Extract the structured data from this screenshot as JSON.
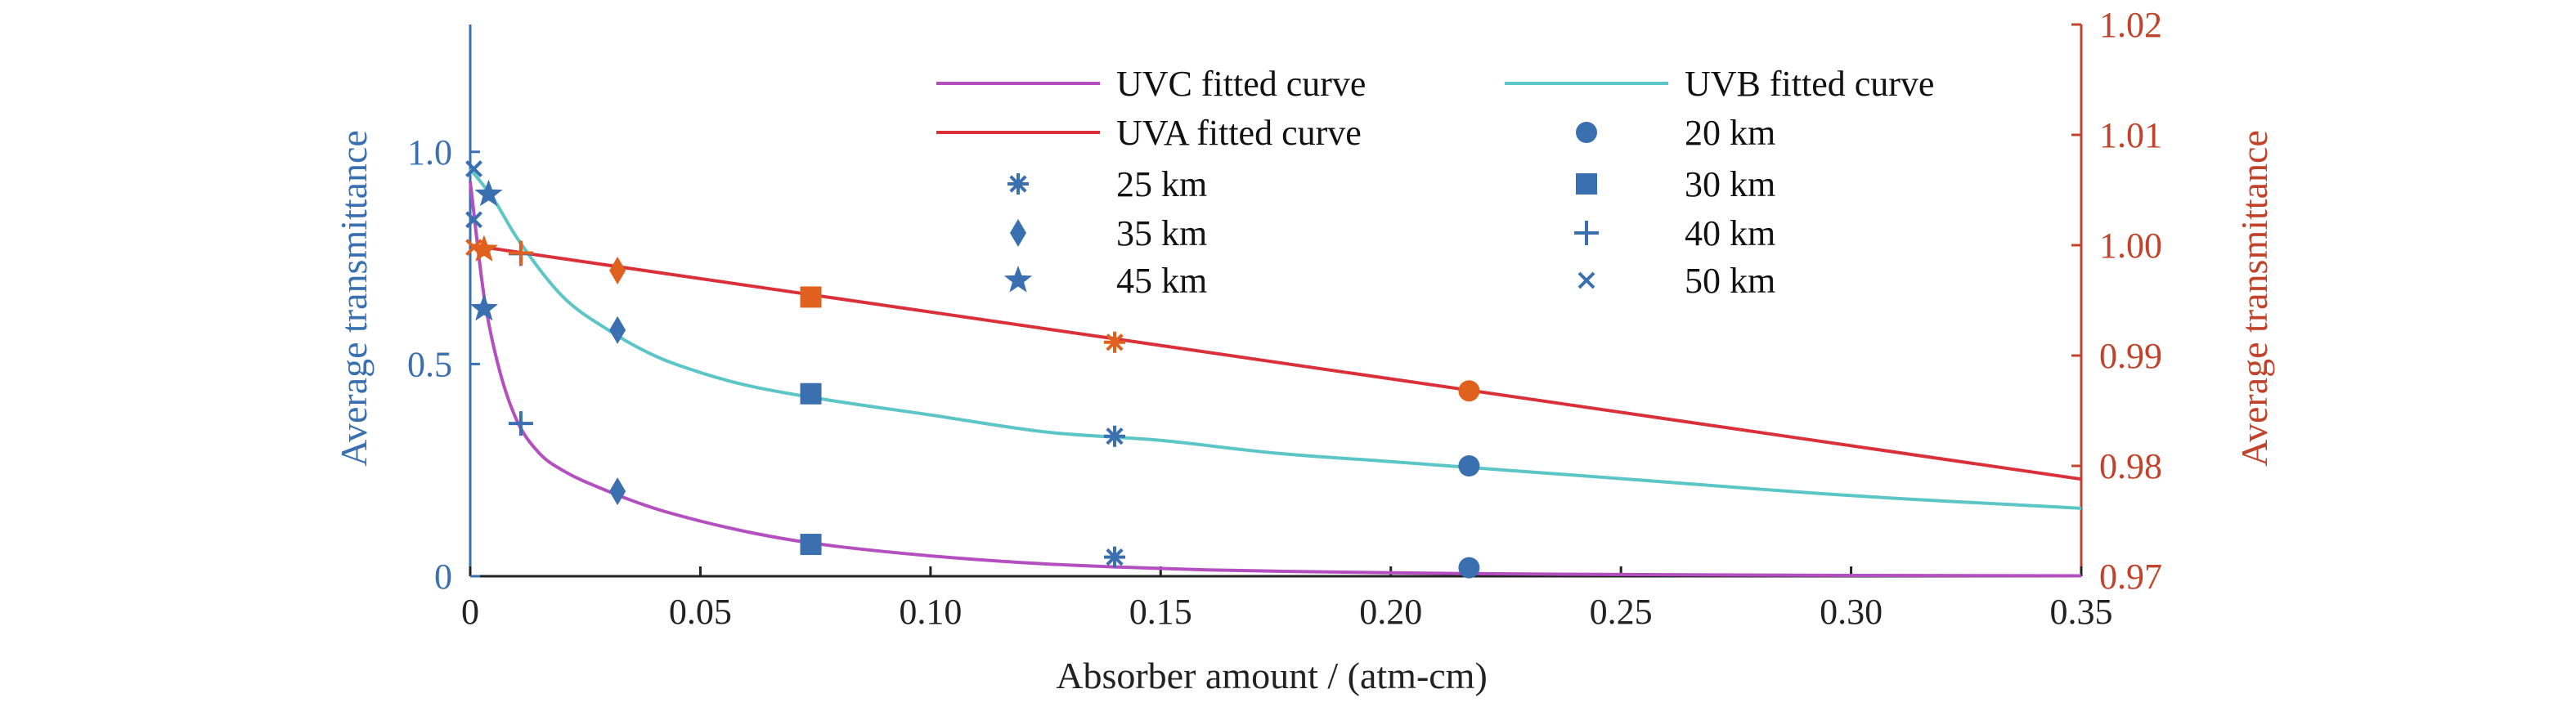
{
  "chart_data": {
    "type": "line",
    "xlabel": "Absorber amount / (atm-cm)",
    "ylabel_left": "Average transmittance",
    "ylabel_right": "Average transmittance",
    "xlim": [
      0,
      0.35
    ],
    "ylim_left": [
      0,
      1.3
    ],
    "ylim_right": [
      0.97,
      1.02
    ],
    "x_ticks": [
      0,
      0.05,
      0.1,
      0.15,
      0.2,
      0.25,
      0.3,
      0.35
    ],
    "x_tick_labels": [
      "0",
      "0.05",
      "0.10",
      "0.15",
      "0.20",
      "0.25",
      "0.30",
      "0.35"
    ],
    "y_left_ticks": [
      0,
      0.5,
      1.0
    ],
    "y_left_tick_labels": [
      "0",
      "0.5",
      "1.0"
    ],
    "y_right_ticks": [
      0.97,
      0.98,
      0.99,
      1.0,
      1.01,
      1.02
    ],
    "y_right_tick_labels": [
      "0.97",
      "0.98",
      "0.99",
      "1.00",
      "1.01",
      "1.02"
    ],
    "grid": false,
    "legend_placement": "top-center",
    "colors": {
      "uvc": "#b44fc0",
      "uvb": "#5cc5c5",
      "uva": "#d9303a",
      "marker_blue": "#3a6fb0",
      "marker_orange": "#e0601e",
      "left_axis": "#3a6fb0",
      "right_axis": "#c0432a"
    },
    "fitted_curves": [
      {
        "name": "UVC fitted curve",
        "axis": "left",
        "x": [
          0,
          0.003,
          0.006,
          0.01,
          0.015,
          0.02,
          0.03,
          0.04,
          0.05,
          0.06,
          0.07,
          0.08,
          0.1,
          0.12,
          0.14,
          0.16,
          0.18,
          0.2,
          0.22,
          0.25,
          0.3,
          0.35
        ],
        "y": [
          0.93,
          0.66,
          0.5,
          0.37,
          0.29,
          0.25,
          0.2,
          0.16,
          0.13,
          0.105,
          0.085,
          0.07,
          0.048,
          0.032,
          0.022,
          0.015,
          0.011,
          0.008,
          0.006,
          0.004,
          0.002,
          0.001
        ]
      },
      {
        "name": "UVB fitted curve",
        "axis": "left",
        "x": [
          0,
          0.005,
          0.01,
          0.02,
          0.03,
          0.04,
          0.05,
          0.06,
          0.075,
          0.1,
          0.125,
          0.15,
          0.175,
          0.2,
          0.225,
          0.25,
          0.3,
          0.35
        ],
        "y": [
          0.96,
          0.89,
          0.8,
          0.66,
          0.58,
          0.52,
          0.48,
          0.45,
          0.42,
          0.38,
          0.34,
          0.32,
          0.29,
          0.27,
          0.25,
          0.23,
          0.19,
          0.16
        ]
      },
      {
        "name": "UVA fitted curve",
        "axis": "right",
        "x": [
          0,
          0.35
        ],
        "y": [
          1.0,
          0.9788
        ]
      }
    ],
    "scatter_series": [
      {
        "name": "20 km",
        "marker": "circle",
        "points": [
          {
            "x": 0.217,
            "y": 0.02,
            "axis": "left",
            "color": "#3a6fb0"
          },
          {
            "x": 0.217,
            "y": 0.26,
            "axis": "left",
            "color": "#3a6fb0"
          },
          {
            "x": 0.217,
            "y": 0.9868,
            "axis": "right",
            "color": "#e0601e"
          }
        ]
      },
      {
        "name": "25 km",
        "marker": "asterisk",
        "points": [
          {
            "x": 0.14,
            "y": 0.045,
            "axis": "left",
            "color": "#3a6fb0"
          },
          {
            "x": 0.14,
            "y": 0.33,
            "axis": "left",
            "color": "#3a6fb0"
          },
          {
            "x": 0.14,
            "y": 0.9912,
            "axis": "right",
            "color": "#e0601e"
          }
        ]
      },
      {
        "name": "30 km",
        "marker": "square",
        "points": [
          {
            "x": 0.074,
            "y": 0.075,
            "axis": "left",
            "color": "#3a6fb0"
          },
          {
            "x": 0.074,
            "y": 0.43,
            "axis": "left",
            "color": "#3a6fb0"
          },
          {
            "x": 0.074,
            "y": 0.9953,
            "axis": "right",
            "color": "#e0601e"
          }
        ]
      },
      {
        "name": "35 km",
        "marker": "diamond",
        "points": [
          {
            "x": 0.032,
            "y": 0.2,
            "axis": "left",
            "color": "#3a6fb0"
          },
          {
            "x": 0.032,
            "y": 0.58,
            "axis": "left",
            "color": "#3a6fb0"
          },
          {
            "x": 0.032,
            "y": 0.9977,
            "axis": "right",
            "color": "#e0601e"
          }
        ]
      },
      {
        "name": "40 km",
        "marker": "plus",
        "points": [
          {
            "x": 0.011,
            "y": 0.36,
            "axis": "left",
            "color": "#3a6fb0"
          },
          {
            "x": 0.011,
            "y": 0.76,
            "axis": "left",
            "color": "#3a6fb0"
          },
          {
            "x": 0.011,
            "y": 0.9993,
            "axis": "right",
            "color": "#e0601e"
          }
        ]
      },
      {
        "name": "45 km",
        "marker": "star",
        "points": [
          {
            "x": 0.003,
            "y": 0.63,
            "axis": "left",
            "color": "#3a6fb0"
          },
          {
            "x": 0.004,
            "y": 0.9,
            "axis": "left",
            "color": "#3a6fb0"
          },
          {
            "x": 0.003,
            "y": 0.9996,
            "axis": "right",
            "color": "#e0601e"
          }
        ]
      },
      {
        "name": "50 km",
        "marker": "x",
        "points": [
          {
            "x": 0.0008,
            "y": 0.84,
            "axis": "left",
            "color": "#3a6fb0"
          },
          {
            "x": 0.0008,
            "y": 0.96,
            "axis": "left",
            "color": "#3a6fb0"
          },
          {
            "x": 0.0008,
            "y": 0.9998,
            "axis": "right",
            "color": "#e0601e"
          }
        ]
      }
    ],
    "legend": [
      {
        "label": "UVC fitted curve",
        "kind": "line",
        "color": "#b44fc0"
      },
      {
        "label": "UVB fitted curve",
        "kind": "line",
        "color": "#5cc5c5"
      },
      {
        "label": "UVA fitted curve",
        "kind": "line",
        "color": "#d9303a"
      },
      {
        "label": "20 km",
        "kind": "marker",
        "marker": "circle",
        "color": "#3a6fb0"
      },
      {
        "label": "25 km",
        "kind": "marker",
        "marker": "asterisk",
        "color": "#3a6fb0"
      },
      {
        "label": "30 km",
        "kind": "marker",
        "marker": "square",
        "color": "#3a6fb0"
      },
      {
        "label": "35 km",
        "kind": "marker",
        "marker": "diamond",
        "color": "#3a6fb0"
      },
      {
        "label": "40 km",
        "kind": "marker",
        "marker": "plus",
        "color": "#3a6fb0"
      },
      {
        "label": "45 km",
        "kind": "marker",
        "marker": "star",
        "color": "#3a6fb0"
      },
      {
        "label": "50 km",
        "kind": "marker",
        "marker": "x",
        "color": "#3a6fb0"
      }
    ]
  }
}
